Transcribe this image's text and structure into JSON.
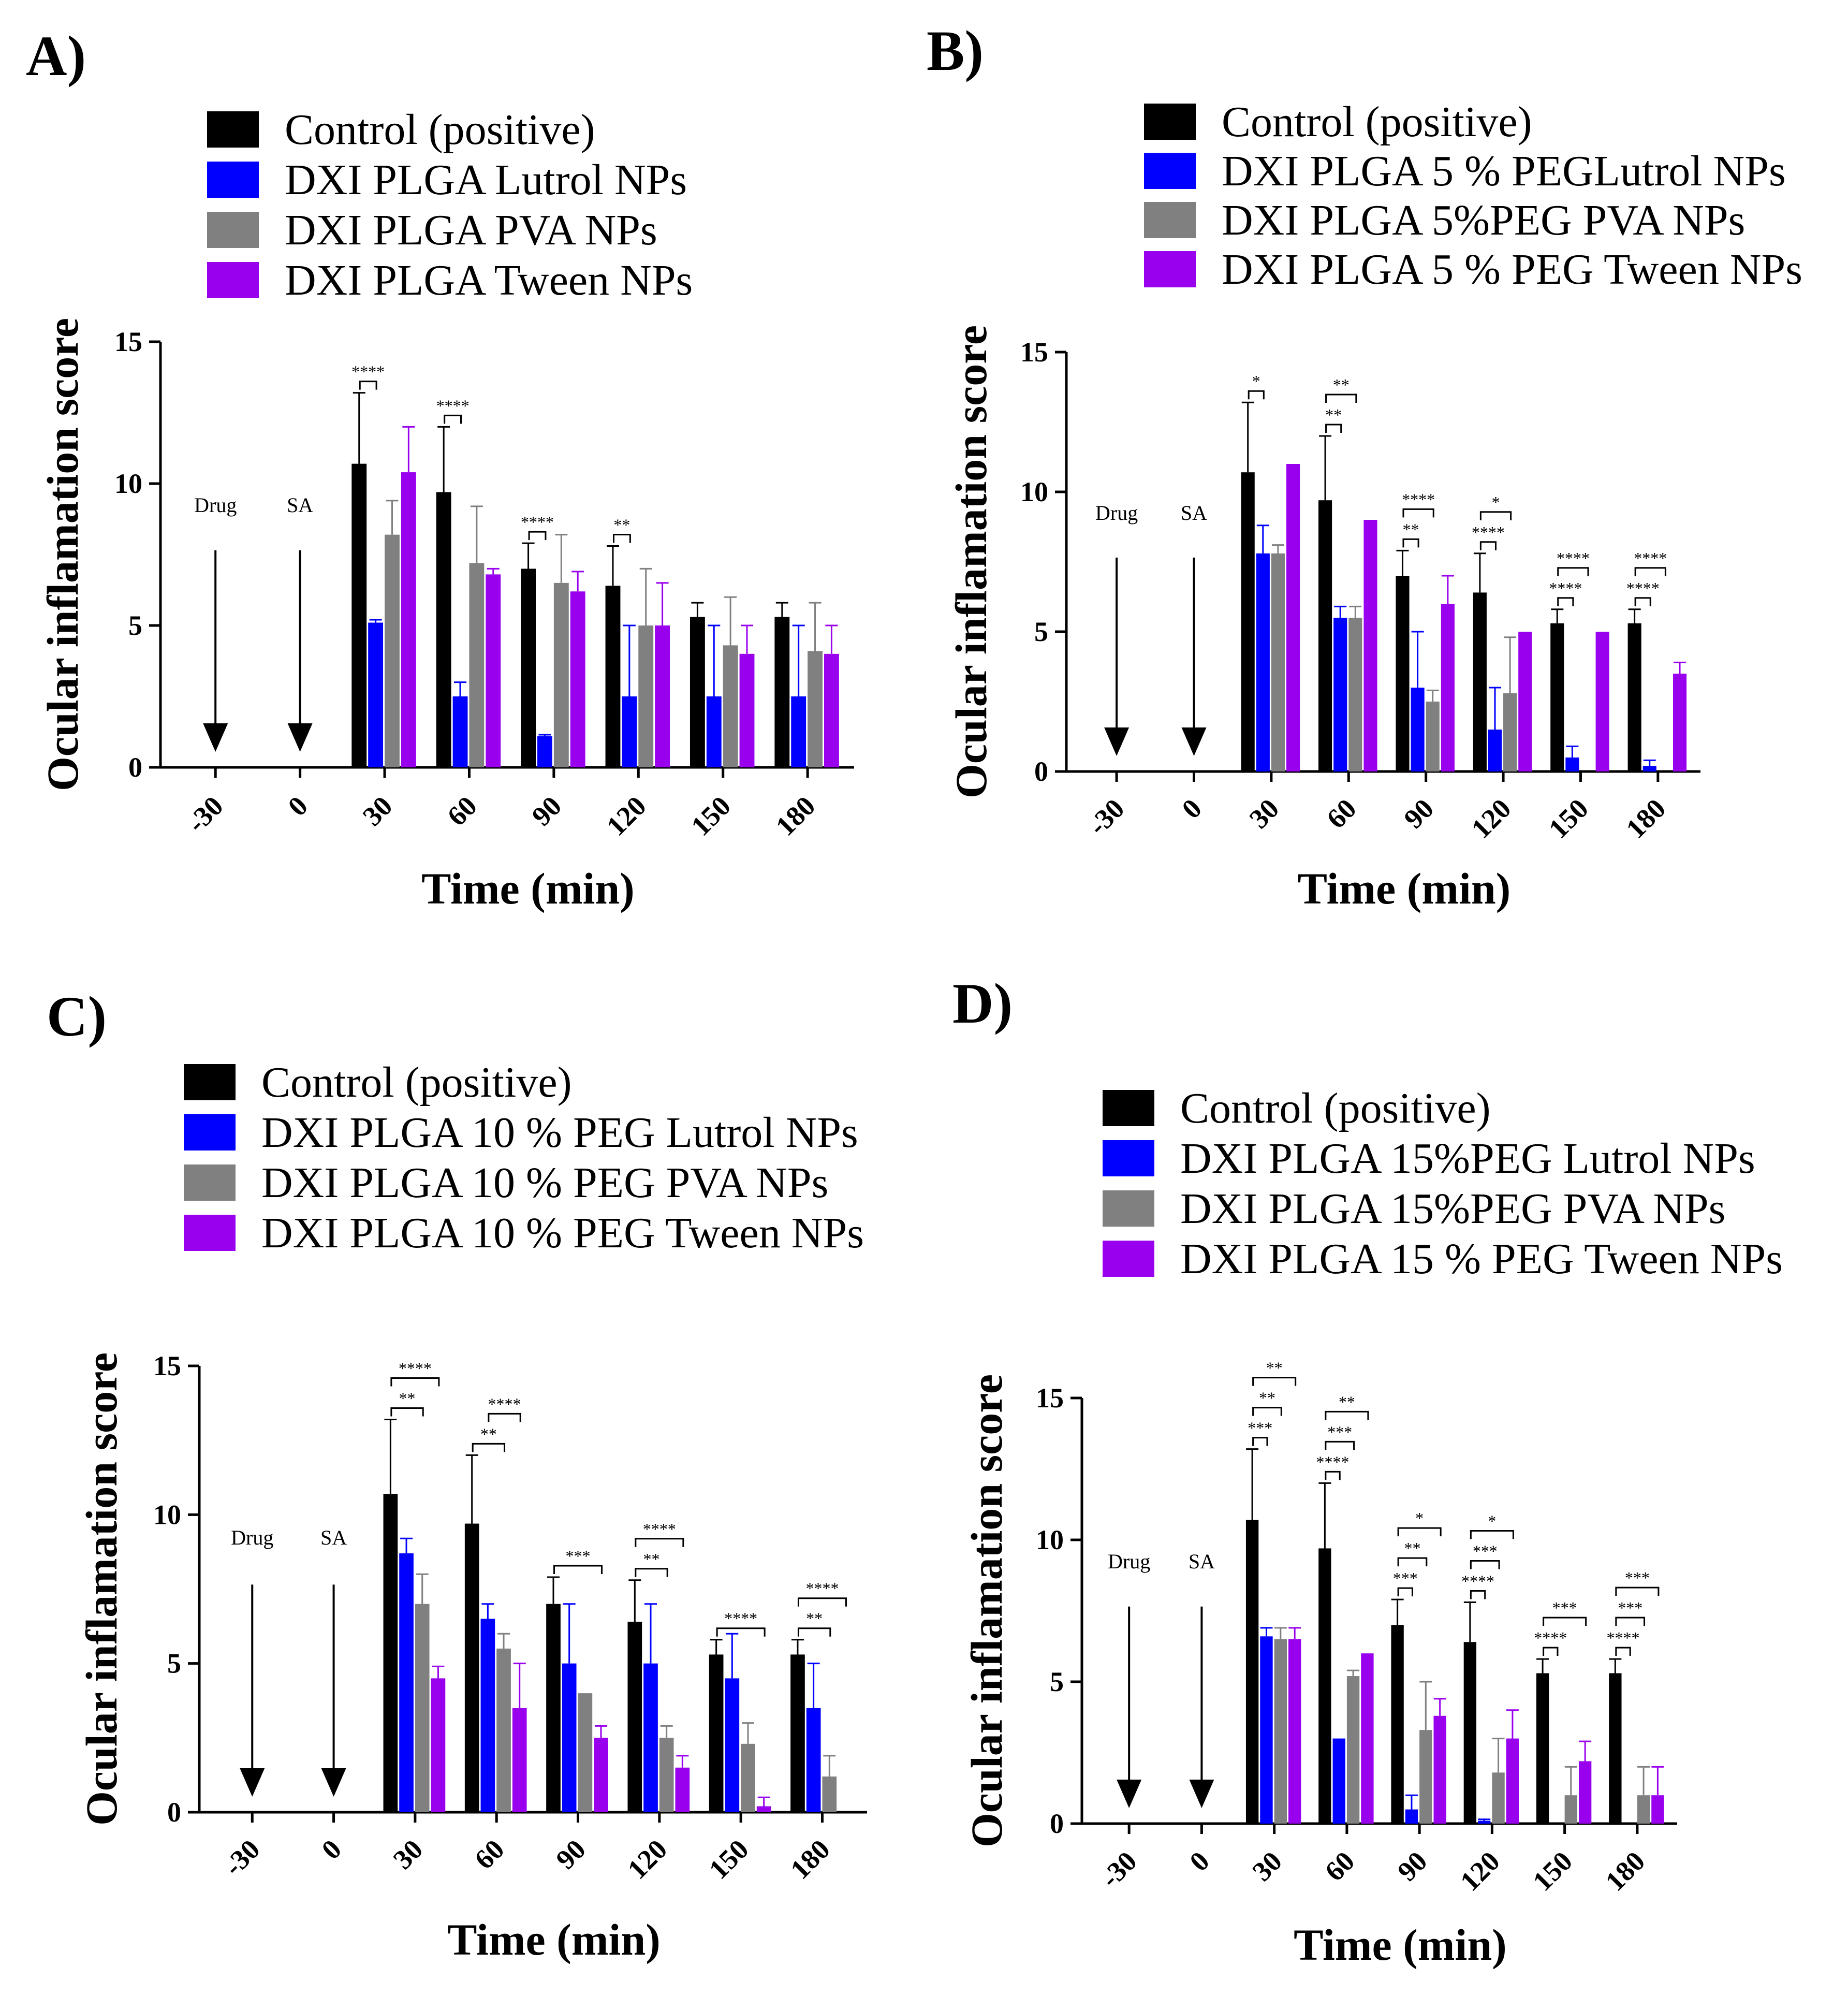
{
  "chart_data": [
    {
      "type": "bar",
      "panel": "A)",
      "categories": [
        "-30",
        "0",
        "30",
        "60",
        "90",
        "120",
        "150",
        "180"
      ],
      "xlabel": "Time (min)",
      "ylabel": "Ocular inflamation score",
      "ylim": [
        0,
        15
      ],
      "yticks": [
        "0",
        "5",
        "10",
        "15"
      ],
      "annotations": [
        "Drug",
        "SA"
      ],
      "legend_position": "top",
      "series": [
        {
          "name": "Control (positive)",
          "color": "#000000",
          "values": [
            0,
            0,
            10.7,
            9.7,
            7.0,
            6.4,
            5.3,
            5.3
          ],
          "errors": [
            0,
            0,
            2.5,
            2.3,
            0.9,
            1.4,
            0.5,
            0.5
          ]
        },
        {
          "name": "DXI PLGA Lutrol NPs",
          "color": "#0000ff",
          "values": [
            0,
            0,
            5.1,
            2.5,
            1.1,
            2.5,
            2.5,
            2.5
          ],
          "errors": [
            0,
            0,
            0.1,
            0.5,
            0.05,
            2.5,
            2.5,
            2.5
          ]
        },
        {
          "name": "DXI PLGA PVA NPs",
          "color": "#808080",
          "values": [
            0,
            0,
            8.2,
            7.2,
            6.5,
            5.0,
            4.3,
            4.1
          ],
          "errors": [
            0,
            0,
            1.2,
            2.0,
            1.7,
            2.0,
            1.7,
            1.7
          ]
        },
        {
          "name": "DXI PLGA Tween NPs",
          "color": "#9900ee",
          "values": [
            0,
            0,
            10.4,
            6.8,
            6.2,
            5.0,
            4.0,
            4.0
          ],
          "errors": [
            0,
            0,
            1.6,
            0.2,
            0.7,
            1.5,
            1.0,
            1.0
          ]
        }
      ],
      "significance": [
        {
          "category": "30",
          "from": 0,
          "to": 1,
          "label": "****"
        },
        {
          "category": "60",
          "from": 0,
          "to": 1,
          "label": "****"
        },
        {
          "category": "90",
          "from": 0,
          "to": 1,
          "label": "****"
        },
        {
          "category": "120",
          "from": 0,
          "to": 1,
          "label": "**"
        }
      ]
    },
    {
      "type": "bar",
      "panel": "B)",
      "categories": [
        "-30",
        "0",
        "30",
        "60",
        "90",
        "120",
        "150",
        "180"
      ],
      "xlabel": "Time (min)",
      "ylabel": "Ocular inflamation score",
      "ylim": [
        0,
        15
      ],
      "yticks": [
        "0",
        "5",
        "10",
        "15"
      ],
      "annotations": [
        "Drug",
        "SA"
      ],
      "legend_position": "top",
      "series": [
        {
          "name": "Control (positive)",
          "color": "#000000",
          "values": [
            0,
            0,
            10.7,
            9.7,
            7.0,
            6.4,
            5.3,
            5.3
          ],
          "errors": [
            0,
            0,
            2.5,
            2.3,
            0.9,
            1.4,
            0.5,
            0.5
          ]
        },
        {
          "name": "DXI PLGA 5 % PEGLutrol NPs",
          "color": "#0000ff",
          "values": [
            0,
            0,
            7.8,
            5.5,
            3.0,
            1.5,
            0.5,
            0.2
          ],
          "errors": [
            0,
            0,
            1.0,
            0.4,
            2.0,
            1.5,
            0.4,
            0.2
          ]
        },
        {
          "name": "DXI PLGA 5%PEG PVA NPs",
          "color": "#808080",
          "values": [
            0,
            0,
            7.8,
            5.5,
            2.5,
            2.8,
            0,
            0
          ],
          "errors": [
            0,
            0,
            0.3,
            0.4,
            0.4,
            2.0,
            0,
            0
          ]
        },
        {
          "name": "DXI PLGA 5 % PEG Tween NPs",
          "color": "#9900ee",
          "values": [
            0,
            0,
            11.0,
            9.0,
            6.0,
            5.0,
            5.0,
            3.5
          ],
          "errors": [
            0,
            0,
            0,
            0,
            1.0,
            0,
            0,
            0.4
          ]
        }
      ],
      "significance": [
        {
          "category": "30",
          "from": 0,
          "to": 1,
          "label": "*"
        },
        {
          "category": "60",
          "from": 0,
          "to": 1,
          "label": "**"
        },
        {
          "category": "60",
          "from": 0,
          "to": 2,
          "label": "**"
        },
        {
          "category": "90",
          "from": 0,
          "to": 1,
          "label": "**"
        },
        {
          "category": "90",
          "from": 0,
          "to": 2,
          "label": "****"
        },
        {
          "category": "120",
          "from": 0,
          "to": 1,
          "label": "****"
        },
        {
          "category": "120",
          "from": 0,
          "to": 2,
          "label": "*"
        },
        {
          "category": "150",
          "from": 0,
          "to": 1,
          "label": "****"
        },
        {
          "category": "150",
          "from": 0,
          "to": 2,
          "label": "****"
        },
        {
          "category": "180",
          "from": 0,
          "to": 1,
          "label": "****"
        },
        {
          "category": "180",
          "from": 0,
          "to": 2,
          "label": "****"
        }
      ]
    },
    {
      "type": "bar",
      "panel": "C)",
      "categories": [
        "-30",
        "0",
        "30",
        "60",
        "90",
        "120",
        "150",
        "180"
      ],
      "xlabel": "Time (min)",
      "ylabel": "Ocular inflamation score",
      "ylim": [
        0,
        15
      ],
      "yticks": [
        "0",
        "5",
        "10",
        "15"
      ],
      "annotations": [
        "Drug",
        "SA"
      ],
      "legend_position": "top",
      "series": [
        {
          "name": "Control (positive)",
          "color": "#000000",
          "values": [
            0,
            0,
            10.7,
            9.7,
            7.0,
            6.4,
            5.3,
            5.3
          ],
          "errors": [
            0,
            0,
            2.5,
            2.3,
            0.9,
            1.4,
            0.5,
            0.5
          ]
        },
        {
          "name": "DXI PLGA 10 % PEG Lutrol NPs",
          "color": "#0000ff",
          "values": [
            0,
            0,
            8.7,
            6.5,
            5.0,
            5.0,
            4.5,
            3.5
          ],
          "errors": [
            0,
            0,
            0.5,
            0.5,
            2.0,
            2.0,
            1.5,
            1.5
          ]
        },
        {
          "name": "DXI PLGA 10 % PEG PVA  NPs",
          "color": "#808080",
          "values": [
            0,
            0,
            7.0,
            5.5,
            4.0,
            2.5,
            2.3,
            1.2
          ],
          "errors": [
            0,
            0,
            1.0,
            0.5,
            0,
            0.4,
            0.7,
            0.7
          ]
        },
        {
          "name": "DXI PLGA 10 % PEG Tween NPs",
          "color": "#9900ee",
          "values": [
            0,
            0,
            4.5,
            3.5,
            2.5,
            1.5,
            0.2,
            0
          ],
          "errors": [
            0,
            0,
            0.4,
            1.5,
            0.4,
            0.4,
            0.3,
            0
          ]
        }
      ],
      "significance": [
        {
          "category": "30",
          "from": 0,
          "to": 2,
          "label": "**"
        },
        {
          "category": "30",
          "from": 0,
          "to": 3,
          "label": "****"
        },
        {
          "category": "60",
          "from": 0,
          "to": 2,
          "label": "**"
        },
        {
          "category": "60",
          "from": 1,
          "to": 3,
          "label": "****"
        },
        {
          "category": "90",
          "from": 0,
          "to": 3,
          "label": "***"
        },
        {
          "category": "120",
          "from": 0,
          "to": 2,
          "label": "**"
        },
        {
          "category": "120",
          "from": 0,
          "to": 3,
          "label": "****"
        },
        {
          "category": "150",
          "from": 0,
          "to": 3,
          "label": "****"
        },
        {
          "category": "180",
          "from": 0,
          "to": 2,
          "label": "**"
        },
        {
          "category": "180",
          "from": 0,
          "to": 3,
          "label": "****"
        }
      ]
    },
    {
      "type": "bar",
      "panel": "D)",
      "categories": [
        "-30",
        "0",
        "30",
        "60",
        "90",
        "120",
        "150",
        "180"
      ],
      "xlabel": "Time (min)",
      "ylabel": "Ocular inflamation score",
      "ylim": [
        0,
        15
      ],
      "yticks": [
        "0",
        "5",
        "10",
        "15"
      ],
      "annotations": [
        "Drug",
        "SA"
      ],
      "legend_position": "top",
      "series": [
        {
          "name": "Control (positive)",
          "color": "#000000",
          "values": [
            0,
            0,
            10.7,
            9.7,
            7.0,
            6.4,
            5.3,
            5.3
          ],
          "errors": [
            0,
            0,
            2.5,
            2.3,
            0.9,
            1.4,
            0.5,
            0.5
          ]
        },
        {
          "name": "DXI PLGA 15%PEG Lutrol NPs",
          "color": "#0000ff",
          "values": [
            0,
            0,
            6.6,
            3.0,
            0.5,
            0.1,
            0,
            0
          ],
          "errors": [
            0,
            0,
            0.3,
            0,
            0.5,
            0.05,
            0,
            0
          ]
        },
        {
          "name": "DXI PLGA 15%PEG PVA NPs",
          "color": "#808080",
          "values": [
            0,
            0,
            6.5,
            5.2,
            3.3,
            1.8,
            1.0,
            1.0
          ],
          "errors": [
            0,
            0,
            0.4,
            0.2,
            1.7,
            1.2,
            1.0,
            1.0
          ]
        },
        {
          "name": "DXI PLGA 15 % PEG Tween NPs",
          "color": "#9900ee",
          "values": [
            0,
            0,
            6.5,
            6.0,
            3.8,
            3.0,
            2.2,
            1.0
          ],
          "errors": [
            0,
            0,
            0.4,
            0,
            0.6,
            1.0,
            0.7,
            1.0
          ]
        }
      ],
      "significance": [
        {
          "category": "30",
          "from": 0,
          "to": 1,
          "label": "***"
        },
        {
          "category": "30",
          "from": 0,
          "to": 2,
          "label": "**"
        },
        {
          "category": "30",
          "from": 0,
          "to": 3,
          "label": "**"
        },
        {
          "category": "60",
          "from": 0,
          "to": 1,
          "label": "****"
        },
        {
          "category": "60",
          "from": 0,
          "to": 2,
          "label": "***"
        },
        {
          "category": "60",
          "from": 0,
          "to": 3,
          "label": "**"
        },
        {
          "category": "90",
          "from": 0,
          "to": 1,
          "label": "***"
        },
        {
          "category": "90",
          "from": 0,
          "to": 2,
          "label": "**"
        },
        {
          "category": "90",
          "from": 0,
          "to": 3,
          "label": "*"
        },
        {
          "category": "120",
          "from": 0,
          "to": 1,
          "label": "****"
        },
        {
          "category": "120",
          "from": 0,
          "to": 2,
          "label": "***"
        },
        {
          "category": "120",
          "from": 0,
          "to": 3,
          "label": "*"
        },
        {
          "category": "150",
          "from": 0,
          "to": 1,
          "label": "****"
        },
        {
          "category": "150",
          "from": 0,
          "to": 3,
          "label": "***"
        },
        {
          "category": "180",
          "from": 0,
          "to": 1,
          "label": "****"
        },
        {
          "category": "180",
          "from": 0,
          "to": 2,
          "label": "***"
        },
        {
          "category": "180",
          "from": 0,
          "to": 3,
          "label": "***"
        }
      ]
    }
  ]
}
